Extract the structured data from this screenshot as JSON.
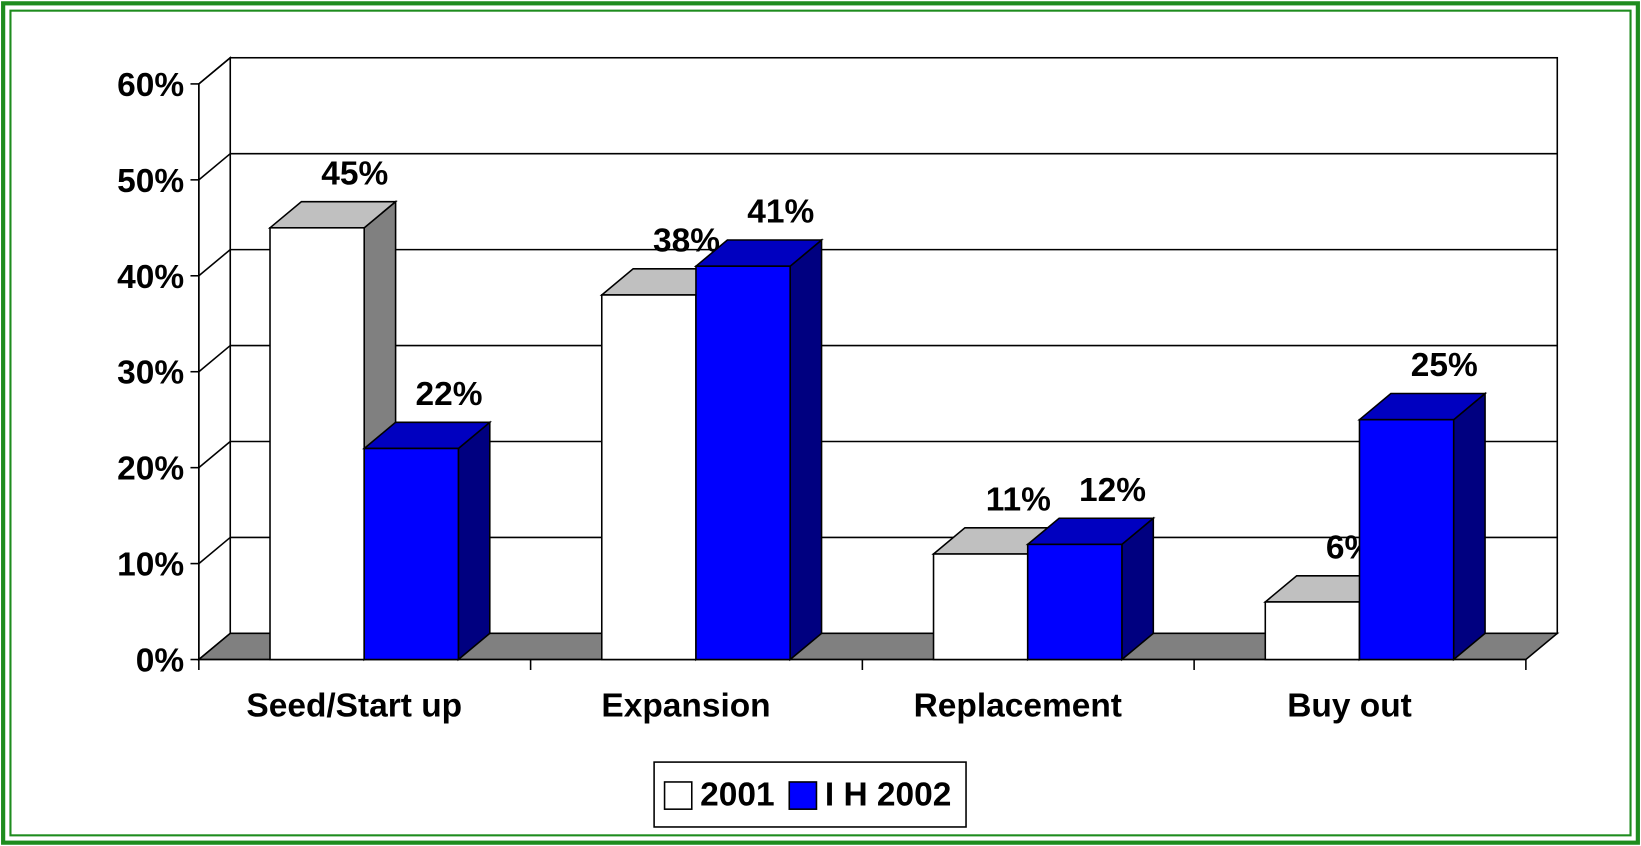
{
  "chart_data": {
    "type": "bar3d",
    "categories": [
      "Seed/Start up",
      "Expansion",
      "Replacement",
      "Buy out"
    ],
    "series": [
      {
        "name": "2001",
        "color": "#ffffff",
        "values": [
          45,
          38,
          11,
          6
        ],
        "value_labels": [
          "45%",
          "38%",
          "11%",
          "6%"
        ]
      },
      {
        "name": "I H 2002",
        "color": "#0000ff",
        "values": [
          22,
          41,
          12,
          25
        ],
        "value_labels": [
          "22%",
          "41%",
          "12%",
          "25%"
        ]
      }
    ],
    "ylim": [
      0,
      60
    ],
    "yticks": [
      {
        "value": 0,
        "label": "0%"
      },
      {
        "value": 10,
        "label": "10%"
      },
      {
        "value": 20,
        "label": "20%"
      },
      {
        "value": 30,
        "label": "30%"
      },
      {
        "value": 40,
        "label": "40%"
      },
      {
        "value": 50,
        "label": "50%"
      },
      {
        "value": 60,
        "label": "60%"
      }
    ],
    "grid": true,
    "legend": "bottom"
  }
}
